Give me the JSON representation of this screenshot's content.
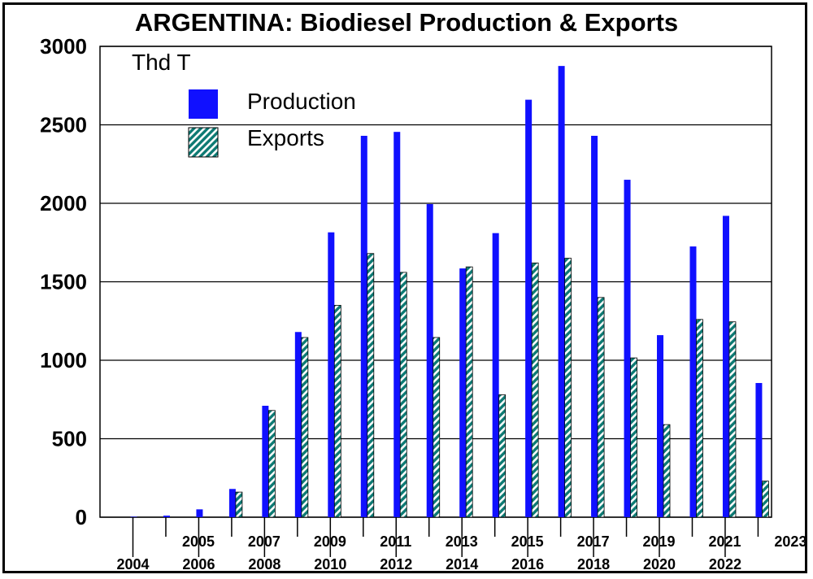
{
  "chart_data": {
    "type": "bar",
    "title": "ARGENTINA: Biodiesel Production & Exports",
    "unit_label": "Thd T",
    "xlabel": "",
    "ylabel": "",
    "ylim": [
      0,
      3000
    ],
    "yticks": [
      "0",
      "500",
      "1000",
      "1500",
      "2000",
      "2500",
      "3000"
    ],
    "grid": true,
    "legend_position": "top-left",
    "categories": [
      "2004",
      "2005",
      "2006",
      "2007",
      "2008",
      "2009",
      "2010",
      "2011",
      "2012",
      "2013",
      "2014",
      "2015",
      "2016",
      "2017",
      "2018",
      "2019",
      "2020",
      "2021",
      "2022",
      "2023"
    ],
    "series": [
      {
        "name": "Production",
        "color": "#1010ff",
        "pattern": "solid",
        "values": [
          3,
          10,
          50,
          180,
          710,
          1180,
          1815,
          2430,
          2455,
          1995,
          1585,
          1810,
          2660,
          2875,
          2430,
          2150,
          1160,
          1725,
          1920,
          855
        ]
      },
      {
        "name": "Exports",
        "color": "#0d7a73",
        "pattern": "diagonal-stripes",
        "values": [
          0,
          0,
          0,
          160,
          680,
          1145,
          1350,
          1680,
          1560,
          1145,
          1595,
          780,
          1620,
          1650,
          1400,
          1015,
          590,
          1260,
          1245,
          230
        ]
      }
    ]
  }
}
